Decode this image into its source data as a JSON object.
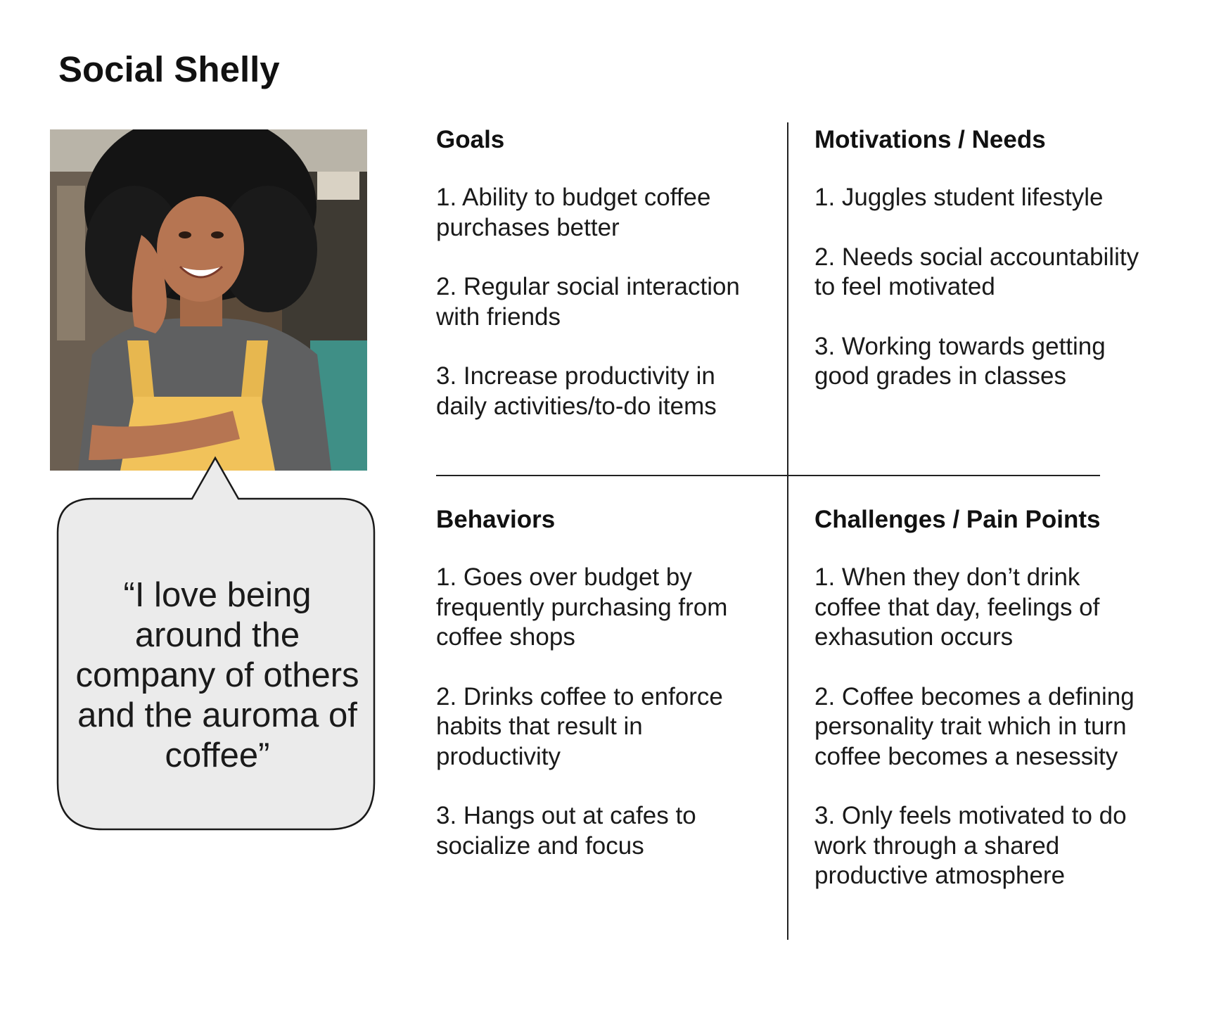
{
  "persona": {
    "name": "Social Shelly",
    "photo_alt": "portrait-photo",
    "quote": "“I love being around the company of others and the auroma of coffee”"
  },
  "sections": {
    "goals": {
      "title": "Goals",
      "items": [
        "1. Ability to budget coffee purchases better",
        "2. Regular social interaction with friends",
        "3. Increase productivity in daily activities/to-do items"
      ]
    },
    "motivations": {
      "title": "Motivations / Needs",
      "items": [
        "1. Juggles student lifestyle",
        "2. Needs social accountability to feel motivated",
        "3. Working towards getting good grades in classes"
      ]
    },
    "behaviors": {
      "title": "Behaviors",
      "items": [
        "1. Goes over budget by frequently purchasing from coffee shops",
        "2. Drinks coffee to enforce habits that result in productivity",
        "3. Hangs out at cafes to socialize and focus"
      ]
    },
    "challenges": {
      "title": "Challenges / Pain Points",
      "items": [
        "1. When they don’t drink coffee that day, feelings of exhasution occurs",
        "2. Coffee becomes a defining personality trait which in turn coffee becomes a nesessity",
        "3. Only feels motivated to do work through a shared productive atmosphere"
      ]
    }
  },
  "colors": {
    "bubble_fill": "#ebebeb",
    "bubble_stroke": "#1a1a1a",
    "divider": "#222222"
  }
}
